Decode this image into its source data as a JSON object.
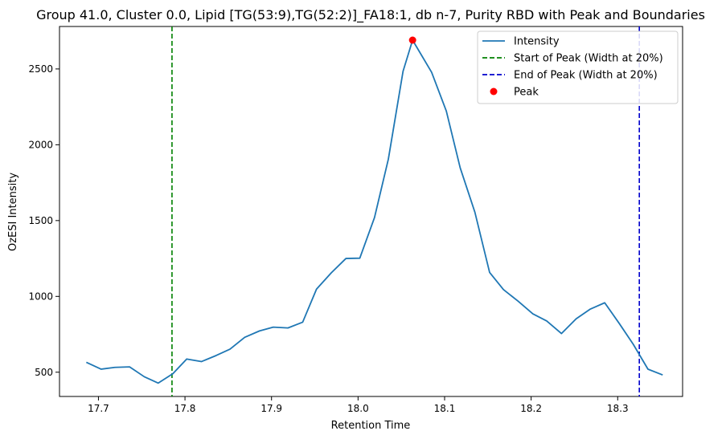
{
  "chart_data": {
    "type": "line",
    "title": "Group 41.0, Cluster 0.0, Lipid [TG(53:9),TG(52:2)]_FA18:1, db n-7, Purity RBD with Peak and Boundaries",
    "xlabel": "Retention Time",
    "ylabel": "OzESI Intensity",
    "xlim": [
      17.655,
      18.375
    ],
    "ylim": [
      340,
      2780
    ],
    "xticks": [
      17.7,
      17.8,
      17.9,
      18.0,
      18.1,
      18.2,
      18.3
    ],
    "xtick_labels": [
      "17.7",
      "17.8",
      "17.9",
      "18.0",
      "18.1",
      "18.2",
      "18.3"
    ],
    "yticks": [
      500,
      1000,
      1500,
      2000,
      2500
    ],
    "ytick_labels": [
      "500",
      "1000",
      "1500",
      "2000",
      "2500"
    ],
    "grid": false,
    "legend_position": "top-right",
    "series": [
      {
        "name": "Intensity",
        "color": "#1f77b4",
        "x": [
          17.686,
          17.703,
          17.719,
          17.736,
          17.753,
          17.769,
          17.786,
          17.802,
          17.819,
          17.836,
          17.852,
          17.869,
          17.886,
          17.902,
          17.919,
          17.936,
          17.952,
          17.969,
          17.986,
          18.002,
          18.019,
          18.035,
          18.052,
          18.063,
          18.085,
          18.102,
          18.118,
          18.135,
          18.152,
          18.168,
          18.185,
          18.202,
          18.218,
          18.235,
          18.252,
          18.268,
          18.285,
          18.302,
          18.318,
          18.335,
          18.352
        ],
        "y": [
          565,
          520,
          532,
          535,
          470,
          428,
          490,
          587,
          570,
          610,
          652,
          730,
          772,
          797,
          792,
          830,
          1048,
          1155,
          1250,
          1252,
          1520,
          1905,
          2485,
          2690,
          2478,
          2222,
          1848,
          1555,
          1158,
          1045,
          968,
          885,
          838,
          755,
          852,
          915,
          958,
          820,
          684,
          520,
          482
        ]
      }
    ],
    "peak": {
      "name": "Peak",
      "color": "#ff0000",
      "x": 18.063,
      "y": 2690
    },
    "vlines": [
      {
        "name": "Start of Peak (Width at 20%)",
        "color": "#008000",
        "x": 17.785,
        "style": "dashed"
      },
      {
        "name": "End of Peak (Width at 20%)",
        "color": "#0000cc",
        "x": 18.325,
        "style": "dashed"
      }
    ],
    "legend": [
      {
        "label": "Intensity",
        "kind": "line",
        "color": "#1f77b4"
      },
      {
        "label": "Start of Peak (Width at 20%)",
        "kind": "dashed",
        "color": "#008000"
      },
      {
        "label": "End of Peak (Width at 20%)",
        "kind": "dashed",
        "color": "#0000cc"
      },
      {
        "label": "Peak",
        "kind": "marker",
        "color": "#ff0000"
      }
    ]
  }
}
